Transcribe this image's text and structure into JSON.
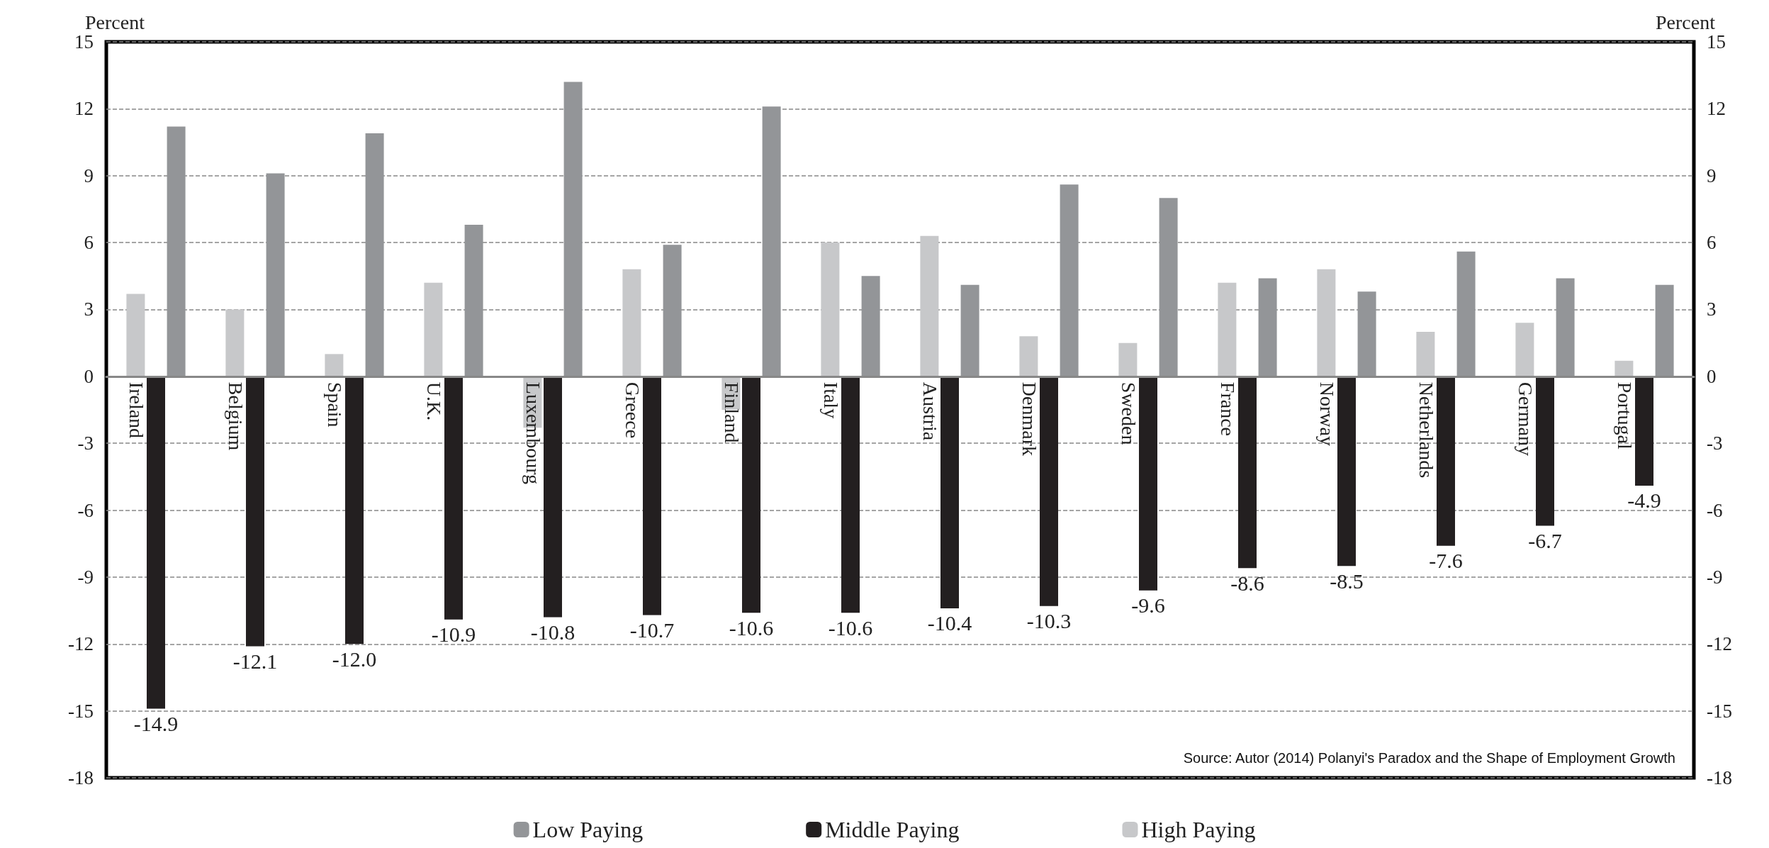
{
  "chart_data": {
    "type": "bar",
    "categories": [
      "Ireland",
      "Belgium",
      "Spain",
      "U.K.",
      "Luxembourg",
      "Greece",
      "Finland",
      "Italy",
      "Austria",
      "Denmark",
      "Sweden",
      "France",
      "Norway",
      "Netherlands",
      "Germany",
      "Portugal"
    ],
    "series": [
      {
        "name": "Low Paying",
        "color": "#939598",
        "values": [
          11.2,
          9.1,
          10.9,
          6.8,
          13.2,
          5.9,
          12.1,
          4.5,
          4.1,
          8.6,
          8.0,
          4.4,
          3.8,
          5.6,
          4.4,
          4.1
        ]
      },
      {
        "name": "Middle Paying",
        "color": "#231f20",
        "values": [
          -14.9,
          -12.1,
          -12.0,
          -10.9,
          -10.8,
          -10.7,
          -10.6,
          -10.6,
          -10.4,
          -10.3,
          -9.6,
          -8.6,
          -8.5,
          -7.6,
          -6.7,
          -4.9
        ],
        "value_labels": [
          "-14.9",
          "-12.1",
          "-12.0",
          "-10.9",
          "-10.8",
          "-10.7",
          "-10.6",
          "-10.6",
          "-10.4",
          "-10.3",
          "-9.6",
          "-8.6",
          "-8.5",
          "-7.6",
          "-6.7",
          "-4.9"
        ]
      },
      {
        "name": "High Paying",
        "color": "#c7c8ca",
        "values": [
          3.7,
          3.0,
          1.0,
          4.2,
          -2.3,
          4.8,
          -1.5,
          6.0,
          6.3,
          1.8,
          1.5,
          4.2,
          4.8,
          2.0,
          2.4,
          0.7
        ]
      }
    ],
    "ylabel": "Percent",
    "y2label": "Percent",
    "ylim": [
      -18,
      15
    ],
    "yticks": [
      -18,
      -15,
      -12,
      -9,
      -6,
      -3,
      0,
      3,
      6,
      9,
      12,
      15
    ],
    "y2lim": [
      -18,
      15
    ],
    "y2ticks": [
      -18,
      -15,
      -12,
      -9,
      -6,
      -3,
      0,
      3,
      6,
      9,
      12,
      15
    ],
    "grid": "y",
    "legend": "bottom",
    "annotations": [
      "Source: Autor (2014) Polanyi's Paradox and the Shape of Employment Growth"
    ]
  }
}
